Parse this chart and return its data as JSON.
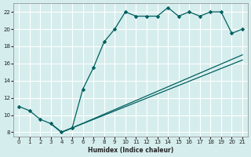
{
  "xlabel": "Humidex (Indice chaleur)",
  "xlim": [
    -0.5,
    21.5
  ],
  "ylim": [
    7.5,
    23
  ],
  "yticks": [
    8,
    10,
    12,
    14,
    16,
    18,
    20,
    22
  ],
  "xticks": [
    0,
    1,
    2,
    3,
    4,
    5,
    6,
    7,
    8,
    9,
    10,
    11,
    12,
    13,
    14,
    15,
    16,
    17,
    18,
    19,
    20,
    21
  ],
  "bg_color": "#d6eded",
  "grid_color": "#ffffff",
  "line_color": "#006060",
  "line1_x": [
    0,
    1,
    2,
    3,
    4,
    5,
    6,
    7,
    8,
    9,
    10,
    11,
    12,
    13,
    14,
    15,
    16,
    17,
    18,
    19,
    20,
    21
  ],
  "line1_y": [
    11,
    10.5,
    9.5,
    9.0,
    8.0,
    8.5,
    13.0,
    15.5,
    18.5,
    20.0,
    22.0,
    21.5,
    21.5,
    21.5,
    22.5,
    21.5,
    22.0,
    21.5,
    22.0,
    22.0,
    19.5,
    20.0
  ],
  "line2_x": [
    3,
    4,
    5,
    21
  ],
  "line2_y": [
    9.0,
    8.0,
    8.5,
    17.0
  ],
  "line3_x": [
    3,
    4,
    5,
    21
  ],
  "line3_y": [
    9.0,
    8.0,
    8.5,
    16.4
  ]
}
